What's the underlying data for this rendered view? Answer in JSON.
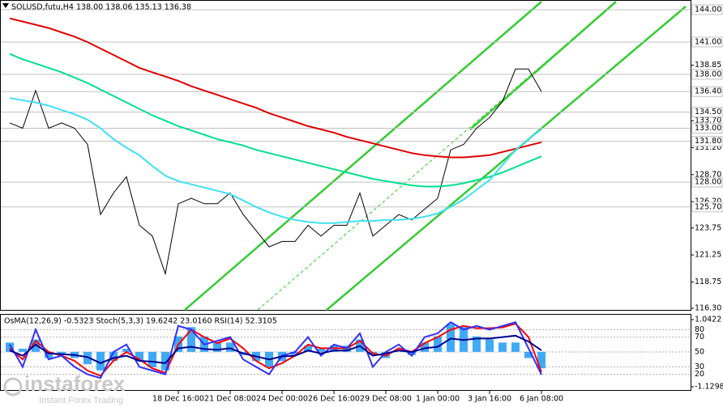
{
  "chart_data": [
    {
      "type": "line",
      "title": "SOLUSD,futu,H4  138.00 138.06 135.13 136.38",
      "categories": [
        null,
        null,
        null,
        null,
        null,
        null,
        null,
        null,
        null,
        null,
        null,
        null,
        null,
        "18 Dec 16:00",
        null,
        null,
        null,
        "21 Dec 08:00",
        null,
        null,
        null,
        "24 Dec 00:00",
        null,
        null,
        null,
        "26 Dec 16:00",
        null,
        null,
        null,
        "29 Dec 08:00",
        null,
        null,
        null,
        "1 Jan 00:00",
        null,
        null,
        null,
        "3 Jan 16:00",
        null,
        null,
        null,
        "6 Jan 08:00"
      ],
      "series": [
        {
          "color": "#000000",
          "values": [
            133.5,
            133,
            136.5,
            133,
            133.5,
            133,
            131.5,
            125,
            127,
            128.5,
            124,
            123,
            119.5,
            126,
            126.5,
            126,
            126,
            127,
            125,
            123.5,
            122,
            122.5,
            122.5,
            124,
            123,
            124,
            124,
            127,
            123,
            124,
            125,
            124.5,
            125.5,
            126.5,
            131,
            131.5,
            133,
            134,
            135.5,
            138.5,
            138.5,
            136.4
          ]
        },
        {
          "color": "#e00000",
          "values": [
            143.2,
            142.9,
            142.6,
            142.3,
            141.9,
            141.5,
            141.0,
            140.4,
            139.8,
            139.2,
            138.6,
            138.2,
            137.8,
            137.4,
            136.9,
            136.5,
            136.1,
            135.7,
            135.3,
            134.9,
            134.4,
            134.0,
            133.6,
            133.2,
            132.9,
            132.6,
            132.2,
            131.9,
            131.6,
            131.3,
            131.0,
            130.7,
            130.5,
            130.4,
            130.3,
            130.3,
            130.4,
            130.5,
            130.8,
            131.1,
            131.4,
            131.7
          ]
        },
        {
          "color": "#00e08c",
          "values": [
            139.9,
            139.4,
            139.0,
            138.6,
            138.2,
            137.7,
            137.2,
            136.6,
            136.0,
            135.4,
            134.8,
            134.2,
            133.7,
            133.2,
            132.8,
            132.4,
            132.0,
            131.7,
            131.4,
            131.0,
            130.7,
            130.4,
            130.1,
            129.8,
            129.5,
            129.2,
            128.9,
            128.6,
            128.3,
            128.1,
            127.9,
            127.7,
            127.6,
            127.6,
            127.7,
            127.9,
            128.2,
            128.5,
            128.9,
            129.4,
            129.9,
            130.4
          ]
        },
        {
          "color": "#40e0f0",
          "values": [
            135.8,
            135.6,
            135.4,
            135.1,
            134.7,
            134.3,
            133.8,
            133.0,
            132.0,
            131.2,
            130.5,
            129.5,
            128.6,
            128.1,
            127.8,
            127.5,
            127.2,
            126.9,
            126.3,
            125.7,
            125.2,
            124.8,
            124.5,
            124.3,
            124.2,
            124.2,
            124.3,
            124.4,
            124.4,
            124.5,
            124.5,
            124.6,
            124.8,
            125.1,
            125.7,
            126.4,
            127.3,
            128.2,
            129.6,
            131.0,
            132.0,
            132.9
          ]
        }
      ],
      "ylim": [
        116.3,
        144.6
      ],
      "yticks": [
        {
          "value": 116.3,
          "label": "116.30"
        },
        118.75,
        121.25,
        123.75,
        {
          "value": 126.2,
          "label": "126.20"
        },
        {
          "value": 128.7,
          "label": "128.70"
        },
        {
          "value": 131.2,
          "label": "131.20"
        },
        {
          "value": 133.7,
          "label": "133.70"
        },
        138.85
      ],
      "levels": [
        {
          "value": 144,
          "label": "144.00"
        },
        {
          "value": 141,
          "label": "141.00"
        },
        {
          "value": 138,
          "label": "138.00"
        },
        {
          "value": 136.4,
          "label": "136.40"
        },
        {
          "value": 134.5,
          "label": "134.50"
        },
        {
          "value": 133,
          "label": "133.00"
        },
        {
          "value": 131.8,
          "label": "131.80"
        },
        {
          "value": 128,
          "label": "128.00"
        },
        {
          "value": 125.7,
          "label": "125.70"
        }
      ],
      "level_color": "#c0c0c0"
    },
    {
      "type": "oscillator",
      "title": "OsMA(12,26,9) -0.5323 Stoch(5,3,3) 19.6242 23.0160 RSI(14) 52.3105",
      "series": [
        {
          "color": "#3fa9f5",
          "axis": "y2",
          "kind": "bar",
          "values": [
            0.3,
            0.1,
            0.4,
            -0.2,
            -0.1,
            -0.2,
            -0.4,
            -0.6,
            -0.3,
            0.1,
            -0.3,
            -0.5,
            -0.6,
            0.5,
            0.8,
            0.5,
            0.3,
            0.3,
            -0.1,
            -0.3,
            -0.5,
            -0.3,
            -0.1,
            0.2,
            0.1,
            0.2,
            0.2,
            0.4,
            -0.1,
            -0.2,
            0.0,
            -0.1,
            0.3,
            0.5,
            0.9,
            0.8,
            0.5,
            0.4,
            0.3,
            0.3,
            -0.2,
            -0.5323
          ]
        },
        {
          "color": "#ff0000",
          "values": [
            55,
            40,
            65,
            50,
            45,
            38,
            25,
            18,
            38,
            50,
            40,
            28,
            22,
            60,
            80,
            70,
            62,
            68,
            55,
            38,
            28,
            35,
            45,
            60,
            55,
            55,
            55,
            65,
            48,
            45,
            55,
            50,
            62,
            70,
            80,
            85,
            82,
            82,
            83,
            88,
            70,
            23.016
          ]
        },
        {
          "color": "#3030ff",
          "values": [
            60,
            30,
            80,
            40,
            45,
            30,
            20,
            15,
            50,
            60,
            30,
            25,
            20,
            85,
            80,
            60,
            65,
            70,
            40,
            30,
            20,
            45,
            50,
            70,
            45,
            60,
            55,
            75,
            30,
            50,
            60,
            45,
            70,
            75,
            90,
            80,
            85,
            80,
            85,
            90,
            55,
            19.6242
          ]
        },
        {
          "color": "#000090",
          "values": [
            52,
            45,
            60,
            48,
            47,
            46,
            43,
            35,
            42,
            45,
            38,
            37,
            35,
            55,
            57,
            54,
            53,
            55,
            48,
            44,
            40,
            44,
            45,
            52,
            48,
            52,
            52,
            58,
            45,
            48,
            52,
            50,
            55,
            57,
            68,
            66,
            68,
            68,
            70,
            72,
            64,
            52.3105
          ]
        }
      ],
      "ylim": [
        0,
        100
      ],
      "yticks": [
        20,
        30,
        50,
        70,
        80
      ],
      "y2lim": [
        -1.208,
        1.199
      ],
      "y2ticks": [
        -1.1298,
        1.0422
      ]
    },
    {
      "watermark": {
        "name": "instaforex",
        "tagline": "Instant Forex Trading"
      }
    }
  ]
}
